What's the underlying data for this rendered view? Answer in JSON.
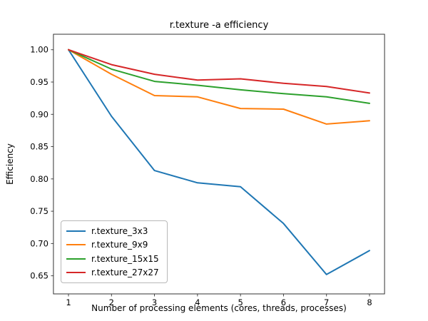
{
  "title": "r.texture -a efficiency",
  "chart_data": {
    "type": "line",
    "title": "r.texture -a efficiency",
    "xlabel": "Number of processing elements (cores, threads, processes)",
    "ylabel": "Efficiency",
    "x": [
      1,
      2,
      3,
      4,
      5,
      6,
      7,
      8
    ],
    "series": [
      {
        "name": "r.texture_3x3",
        "color": "#1f77b4",
        "values": [
          1.0,
          0.897,
          0.813,
          0.794,
          0.788,
          0.731,
          0.652,
          0.689
        ]
      },
      {
        "name": "r.texture_9x9",
        "color": "#ff7f0e",
        "values": [
          1.0,
          0.962,
          0.929,
          0.927,
          0.909,
          0.908,
          0.885,
          0.89
        ]
      },
      {
        "name": "r.texture_15x15",
        "color": "#2ca02c",
        "values": [
          1.0,
          0.97,
          0.951,
          0.945,
          0.938,
          0.932,
          0.927,
          0.917
        ]
      },
      {
        "name": "r.texture_27x27",
        "color": "#d62728",
        "values": [
          1.0,
          0.977,
          0.962,
          0.953,
          0.955,
          0.948,
          0.943,
          0.933
        ]
      }
    ],
    "xticks": [
      1,
      2,
      3,
      4,
      5,
      6,
      7,
      8
    ],
    "xtick_labels": [
      "1",
      "2",
      "3",
      "4",
      "5",
      "6",
      "7",
      "8"
    ],
    "yticks": [
      1.0,
      0.95,
      0.9,
      0.85,
      0.8,
      0.75,
      0.7,
      0.65
    ],
    "ytick_labels": [
      "1.00",
      "0.95",
      "0.90",
      "0.85",
      "0.80",
      "0.75",
      "0.70",
      "0.65"
    ],
    "xlim": [
      0.65,
      8.35
    ],
    "ylim": [
      0.622,
      1.024
    ],
    "grid": false,
    "legend_position": "lower-left",
    "spine_color": "#333333",
    "line_width": 2
  }
}
